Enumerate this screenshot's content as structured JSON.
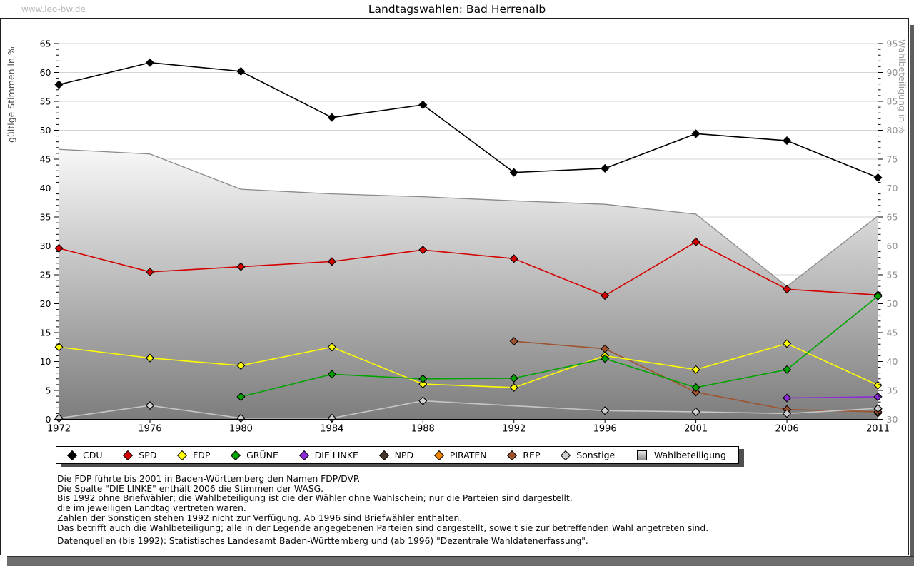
{
  "site": {
    "watermark": "www.leo-bw.de"
  },
  "header": {
    "title": "Landtagswahlen: Bad Herrenalb"
  },
  "chart_data": {
    "type": "line",
    "title": "Landtagswahlen: Bad Herrenalb",
    "categories": [
      "1972",
      "1976",
      "1980",
      "1984",
      "1988",
      "1992",
      "1996",
      "2001",
      "2006",
      "2011"
    ],
    "ylabel_left": "gültige Stimmen in %",
    "ylabel_right": "Wahlbeteiligung in %",
    "ylim_left": [
      0,
      65
    ],
    "ylim_right": [
      30,
      95
    ],
    "tick_step": 5,
    "grid": true,
    "legend_position": "bottom",
    "series": [
      {
        "name": "CDU",
        "color": "#000000",
        "axis": "left",
        "swatch": "diamond",
        "values": [
          57.9,
          61.7,
          60.2,
          52.2,
          54.4,
          42.7,
          43.4,
          49.4,
          48.2,
          41.8
        ]
      },
      {
        "name": "SPD",
        "color": "#d40000",
        "axis": "left",
        "swatch": "diamond",
        "values": [
          29.6,
          25.5,
          26.4,
          27.3,
          29.3,
          27.8,
          21.4,
          30.7,
          22.5,
          21.5
        ]
      },
      {
        "name": "FDP",
        "color": "#ffff00",
        "axis": "left",
        "swatch": "diamond",
        "values": [
          12.5,
          10.6,
          9.3,
          12.5,
          6.1,
          5.5,
          11.0,
          8.6,
          13.1,
          5.9
        ]
      },
      {
        "name": "GRÜNE",
        "color": "#00a300",
        "axis": "left",
        "swatch": "diamond",
        "values": [
          null,
          null,
          3.9,
          7.8,
          7.0,
          7.1,
          10.5,
          5.5,
          8.6,
          21.3
        ]
      },
      {
        "name": "DIE LINKE",
        "color": "#8d2bd9",
        "axis": "left",
        "swatch": "diamond",
        "values": [
          null,
          null,
          null,
          null,
          null,
          null,
          null,
          null,
          3.7,
          3.9
        ]
      },
      {
        "name": "NPD",
        "color": "#4a3526",
        "axis": "left",
        "swatch": "diamond",
        "values": [
          null,
          null,
          null,
          null,
          null,
          null,
          null,
          null,
          null,
          1.1
        ]
      },
      {
        "name": "PIRATEN",
        "color": "#ee8500",
        "axis": "left",
        "swatch": "diamond",
        "values": [
          null,
          null,
          null,
          null,
          null,
          null,
          null,
          null,
          null,
          1.8
        ]
      },
      {
        "name": "REP",
        "color": "#a0522d",
        "axis": "left",
        "swatch": "diamond",
        "values": [
          null,
          null,
          null,
          null,
          null,
          13.5,
          12.2,
          4.7,
          1.7,
          1.3
        ]
      },
      {
        "name": "Sonstige",
        "color": "#c6c6c6",
        "axis": "left",
        "swatch": "diamond",
        "fill": "#d2d2d2",
        "values": [
          0.2,
          2.4,
          0.2,
          0.2,
          3.2,
          null,
          1.5,
          1.3,
          1.0,
          1.9
        ]
      },
      {
        "name": "Wahlbeteiligung",
        "color": "#8a8a8a",
        "axis": "right",
        "swatch": "square",
        "type": "area",
        "values": [
          76.7,
          75.9,
          69.8,
          69.0,
          68.5,
          67.8,
          67.2,
          65.5,
          53.0,
          65.2
        ]
      }
    ]
  },
  "footnotes": {
    "lines": [
      "Die FDP führte bis 2001 in Baden-Württemberg den Namen FDP/DVP.",
      "Die Spalte \"DIE LINKE\" enthält 2006 die Stimmen der WASG.",
      "Bis 1992 ohne Briefwähler; die Wahlbeteiligung ist die der Wähler ohne Wahlschein; nur die Parteien sind dargestellt,",
      "die im jeweiligen Landtag vertreten waren.",
      "Zahlen der Sonstigen stehen 1992 nicht zur Verfügung. Ab 1996 sind Briefwähler enthalten.",
      "Das betrifft auch die Wahlbeteiligung; alle in der Legende angegebenen Parteien sind dargestellt, soweit sie zur betreffenden Wahl angetreten sind."
    ],
    "source": "Datenquellen (bis 1992): Statistisches Landesamt Baden-Württemberg und (ab 1996) \"Dezentrale Wahldatenerfassung\"."
  }
}
